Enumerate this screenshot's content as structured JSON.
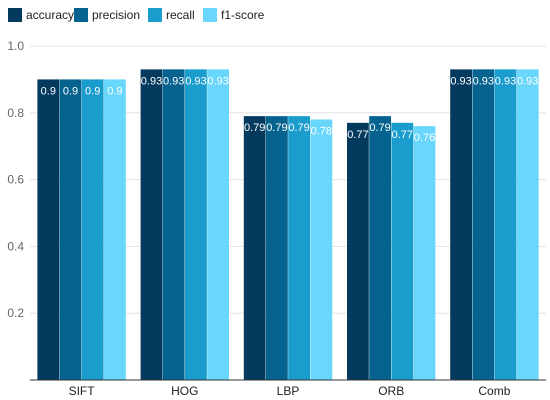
{
  "chart_data": {
    "type": "bar",
    "categories": [
      "SIFT",
      "HOG",
      "LBP",
      "ORB",
      "Comb"
    ],
    "series": [
      {
        "name": "accuracy",
        "color": "#053a5f",
        "values": [
          0.9,
          0.93,
          0.79,
          0.77,
          0.93
        ]
      },
      {
        "name": "precision",
        "color": "#06638f",
        "values": [
          0.9,
          0.93,
          0.79,
          0.79,
          0.93
        ]
      },
      {
        "name": "recall",
        "color": "#1a9ccc",
        "values": [
          0.9,
          0.93,
          0.79,
          0.77,
          0.93
        ]
      },
      {
        "name": "f1-score",
        "color": "#69d6fb",
        "values": [
          0.9,
          0.93,
          0.78,
          0.76,
          0.93
        ]
      }
    ],
    "data_labels": [
      [
        "0.9",
        "0.93",
        "0.79",
        "0.77",
        "0.93"
      ],
      [
        "0.9",
        "0.93",
        "0.79",
        "0.79",
        "0.93"
      ],
      [
        "0.9",
        "0.93",
        "0.79",
        "0.77",
        "0.93"
      ],
      [
        "0.9",
        "0.93",
        "0.78",
        "0.76",
        "0.93"
      ]
    ],
    "y_ticks": [
      "0.2",
      "0.4",
      "0.6",
      "0.8",
      "1.0"
    ],
    "y_tick_values": [
      0.2,
      0.4,
      0.6,
      0.8,
      1.0
    ],
    "ylim": [
      0,
      1.0
    ],
    "grid": true,
    "legend_position": "top-left"
  }
}
